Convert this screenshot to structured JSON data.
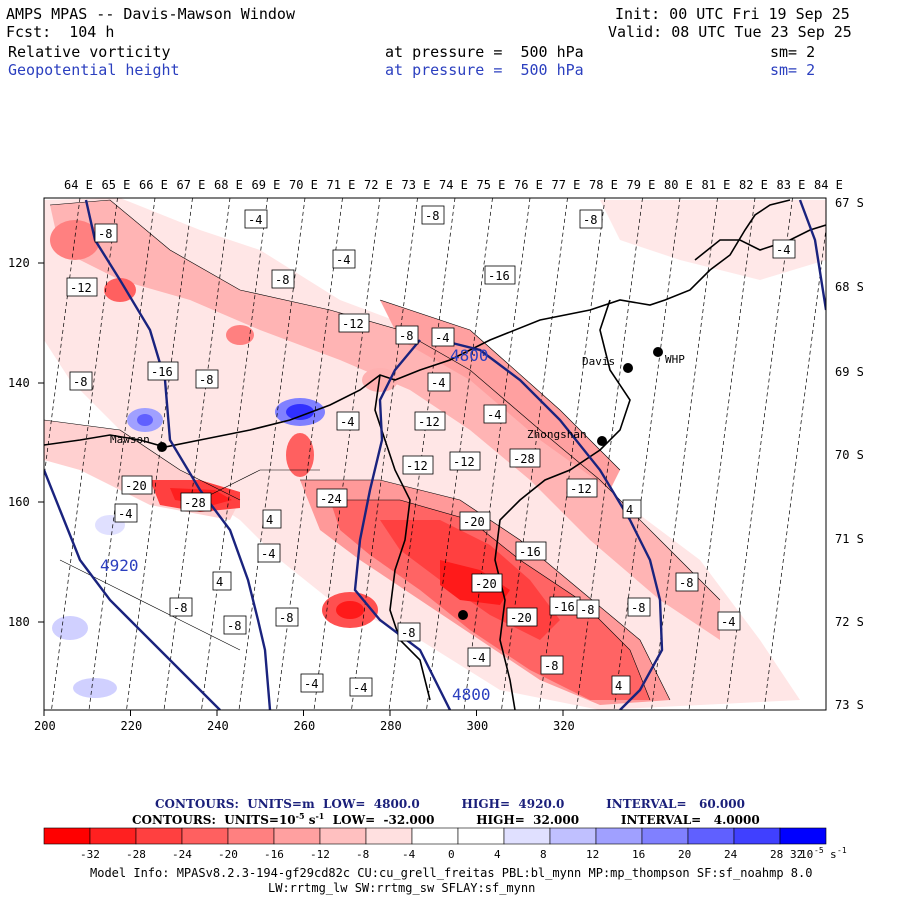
{
  "header": {
    "title": "AMPS MPAS -- Davis-Mawson Window",
    "fcst": "Fcst:  104 h",
    "init": "Init: 00 UTC Fri 19 Sep 25",
    "valid": "Valid: 08 UTC Tue 23 Sep 25",
    "field1": {
      "name": "Relative vorticity",
      "pressure_label": "at pressure =  500 hPa",
      "sm": "sm= 2"
    },
    "field2": {
      "name": "Geopotential height",
      "pressure_label": "at pressure =  500 hPa",
      "sm": "sm= 2"
    }
  },
  "map": {
    "lon_labels": [
      "64 E",
      "65 E",
      "66 E",
      "67 E",
      "68 E",
      "69 E",
      "70 E",
      "71 E",
      "72 E",
      "73 E",
      "74 E",
      "75 E",
      "76 E",
      "77 E",
      "78 E",
      "79 E",
      "80 E",
      "81 E",
      "82 E",
      "83 E",
      "84 E"
    ],
    "lat_labels": [
      "67 S",
      "68 S",
      "69 S",
      "70 S",
      "71 S",
      "72 S",
      "73 S"
    ],
    "x_ticks": [
      "200",
      "220",
      "240",
      "260",
      "280",
      "300",
      "320"
    ],
    "y_ticks": [
      "120",
      "140",
      "160",
      "180"
    ],
    "stations": [
      "Davis",
      "WHP",
      "Zhongshan",
      "Mawson"
    ],
    "height_contour_labels": [
      "4800",
      "4920",
      "4800"
    ],
    "vorticity_labels": [
      "-8",
      "-4",
      "-12",
      "-8",
      "-4",
      "-8",
      "-8",
      "-4",
      "-12",
      "-8",
      "-4",
      "-16",
      "-8",
      "-16",
      "-8",
      "-4",
      "-4",
      "-12",
      "-4",
      "-12",
      "-12",
      "-28",
      "-12",
      "-24",
      "-20",
      "-28",
      "-20",
      "-16",
      "-20",
      "-16",
      "-20",
      "-8",
      "-8",
      "-4",
      "4",
      "4",
      "4",
      "-4",
      "-4",
      "4",
      "-8",
      "-8",
      "-8",
      "-8",
      "-4",
      "-8",
      "-4",
      "-4",
      "-8"
    ]
  },
  "legend": {
    "contour_line1": "CONTOURS:  UNITS=m  LOW=  4800.0          HIGH=  4920.0          INTERVAL=   60.000",
    "contour_line2": "CONTOURS:  UNITS=10",
    "contour_line2b": "s",
    "contour_line2c": "  LOW=  -32.000          HIGH=  32.000          INTERVAL=   4.0000",
    "exp_minus5": "-5",
    "exp_minus1": "-1",
    "colorbar_ticks": [
      "-32",
      "-28",
      "-24",
      "-20",
      "-16",
      "-12",
      "-8",
      "-4",
      "0",
      "4",
      "8",
      "12",
      "16",
      "20",
      "24",
      "28",
      "32"
    ],
    "colorbar_units": "10",
    "colorbar_units_exp": "-5",
    "colorbar_units_s": "s",
    "colorbar_units_s_exp": "-1",
    "colors": [
      "#ff0000",
      "#ff2020",
      "#ff4040",
      "#ff6060",
      "#ff8080",
      "#ffa0a0",
      "#ffc0c0",
      "#ffe0e0",
      "#ffffff",
      "#ffffff",
      "#e0e0ff",
      "#c0c0ff",
      "#a0a0ff",
      "#8080ff",
      "#6060ff",
      "#4040ff",
      "#0000ff"
    ]
  },
  "model_info": {
    "line1": "Model Info: MPASv8.2.3-194-gf29cd82c CU:cu_grell_freitas PBL:bl_mynn MP:mp_thompson SF:sf_noahmp 8.0",
    "line2": "LW:rrtmg_lw SW:rrtmg_sw SFLAY:sf_mynn"
  }
}
